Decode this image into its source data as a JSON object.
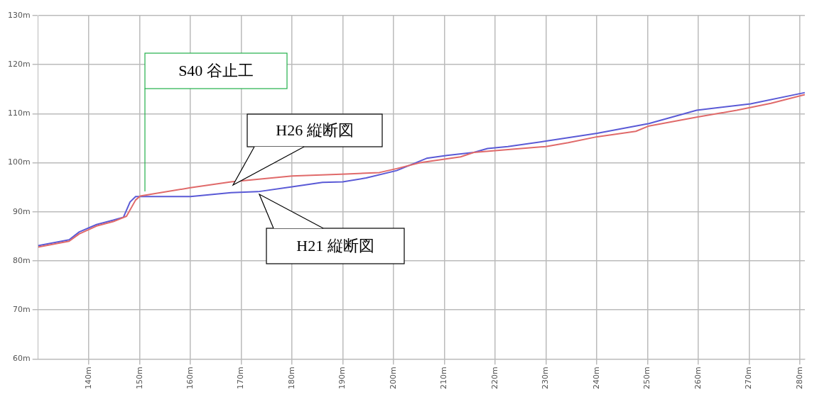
{
  "chart_data": {
    "type": "line",
    "xlim": [
      130,
      281
    ],
    "ylim": [
      60,
      130
    ],
    "xticks": [
      {
        "value": 140,
        "label": "140m"
      },
      {
        "value": 150,
        "label": "150m"
      },
      {
        "value": 160,
        "label": "160m"
      },
      {
        "value": 170,
        "label": "170m"
      },
      {
        "value": 180,
        "label": "180m"
      },
      {
        "value": 190,
        "label": "190m"
      },
      {
        "value": 200,
        "label": "200m"
      },
      {
        "value": 210,
        "label": "210m"
      },
      {
        "value": 220,
        "label": "220m"
      },
      {
        "value": 230,
        "label": "230m"
      },
      {
        "value": 240,
        "label": "240m"
      },
      {
        "value": 250,
        "label": "250m"
      },
      {
        "value": 260,
        "label": "260m"
      },
      {
        "value": 270,
        "label": "270m"
      },
      {
        "value": 280,
        "label": "280m"
      }
    ],
    "yticks": [
      {
        "value": 60,
        "label": "60m"
      },
      {
        "value": 70,
        "label": "70m"
      },
      {
        "value": 80,
        "label": "80m"
      },
      {
        "value": 90,
        "label": "90m"
      },
      {
        "value": 100,
        "label": "100m"
      },
      {
        "value": 110,
        "label": "110m"
      },
      {
        "value": 120,
        "label": "120m"
      },
      {
        "value": 130,
        "label": "130m"
      }
    ],
    "grid": true,
    "legend": false,
    "marker": "none",
    "line_style": "solid",
    "series": [
      {
        "color": "#e06a6a",
        "x": [
          130,
          136.1,
          138.1,
          141.5,
          144.8,
          147.4,
          149.2,
          150.1,
          160,
          168,
          180,
          190.6,
          197.2,
          200.6,
          205.2,
          210.5,
          213.2,
          215.8,
          223.8,
          230,
          234.4,
          240.1,
          247.7,
          250.3,
          259.7,
          267.6,
          274.3,
          281
        ],
        "values": [
          82.8,
          84,
          85.5,
          87.1,
          88,
          89.1,
          92.4,
          93.2,
          94.9,
          96.1,
          97.3,
          97.7,
          98,
          98.8,
          100,
          100.8,
          101.2,
          102.1,
          102.8,
          103.3,
          104.1,
          105.3,
          106.4,
          107.5,
          109.3,
          110.7,
          112.1,
          113.9
        ]
      },
      {
        "color": "#5a5ad6",
        "x": [
          130,
          136.1,
          138.1,
          141.5,
          144.8,
          146.8,
          148.1,
          149.2,
          160,
          168,
          173.3,
          180,
          186,
          190,
          194.6,
          200.6,
          206.5,
          210.5,
          215.8,
          218.5,
          222.5,
          230,
          240.1,
          247.7,
          250.3,
          259.7,
          270.3,
          281
        ],
        "values": [
          83.1,
          84.3,
          85.9,
          87.4,
          88.3,
          88.9,
          92,
          93.1,
          93.1,
          93.9,
          94.1,
          95.1,
          96,
          96.1,
          96.9,
          98.4,
          100.9,
          101.5,
          102.1,
          102.9,
          103.3,
          104.4,
          106,
          107.5,
          108,
          110.7,
          112,
          114.3
        ]
      }
    ],
    "annotations": [
      "S40 谷止工",
      "H26 縦断図",
      "H21 縦断図"
    ]
  }
}
